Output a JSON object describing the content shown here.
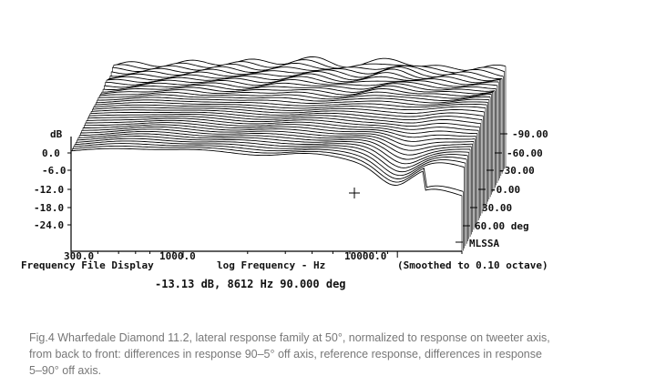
{
  "chart_data": {
    "type": "line",
    "subtype": "waterfall / cumulative spectral family",
    "ylabel": "dB",
    "y_ticks": [
      "0.0",
      "-6.0",
      "-12.0",
      "-18.0",
      "-24.0"
    ],
    "x_scale": "log",
    "x_ticks": [
      "300.0",
      "1000.0",
      "10000.0"
    ],
    "x_tick_values": [
      300,
      1000,
      10000
    ],
    "xlim": [
      300,
      20000
    ],
    "z_ticks": [
      "-90.00",
      "-60.00",
      "-30.00",
      "-0.00",
      "30.00",
      "60.00 deg"
    ],
    "z_tick_values": [
      -90,
      -60,
      -30,
      0,
      30,
      60
    ],
    "series_count": 38,
    "bottom_left": "Frequency File Display",
    "xlabel": "log Frequency - Hz",
    "smoothing_note": "(Smoothed to 0.10 octave)",
    "brand": "MLSSA",
    "cursor_readout": "-13.13 dB, 8612 Hz  90.000 deg",
    "cursor": {
      "db": -13.13,
      "hz": 8612,
      "deg": 90
    }
  },
  "caption": "Fig.4 Wharfedale Diamond 11.2, lateral response family at 50°, normalized to response on tweeter axis, from back to front: differences in response 90–5° off axis, reference response, differences in response 5–90° off axis."
}
